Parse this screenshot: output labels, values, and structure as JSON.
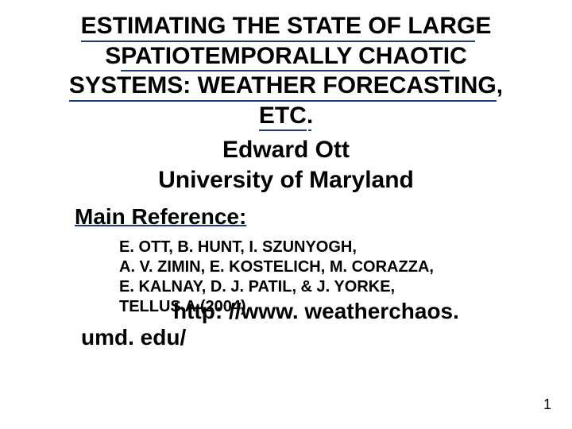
{
  "colors": {
    "text": "#000000",
    "underline": "#1a3a8a",
    "background": "#ffffff"
  },
  "fonts": {
    "family": "Arial",
    "title_size_pt": 30,
    "author_size_pt": 30,
    "mainref_size_pt": 28,
    "refs_size_pt": 20,
    "url_size_pt": 28,
    "pagenum_size_pt": 18,
    "weight": "bold"
  },
  "title": {
    "line1a": "ESTIMATING THE STATE OF LARG",
    "line1b": "E",
    "line2a": "S",
    "line2b": "PATIOTEMPORALLY CHAOTI",
    "line2c": "C",
    "line3a": "SYSTEMS: WEATHER FORECASTING",
    "line3b": ",",
    "line4a": "ETC",
    "line4b": "."
  },
  "author": {
    "line1": "Edward Ott",
    "line2": "University of Maryland"
  },
  "main_reference_label": "Main Reference:",
  "references": {
    "line1": "E. OTT, B. HUNT, I. SZUNYOGH,",
    "line2": "A. V. ZIMIN, E. KOSTELICH, M. CORAZZA,",
    "line3": "E. KALNAY, D. J. PATIL, & J. YORKE,",
    "line4": "TELLUS A (2004)."
  },
  "url": {
    "part1": "http: //www. weatherchaos.",
    "part2": "umd. edu/"
  },
  "page_number": "1"
}
